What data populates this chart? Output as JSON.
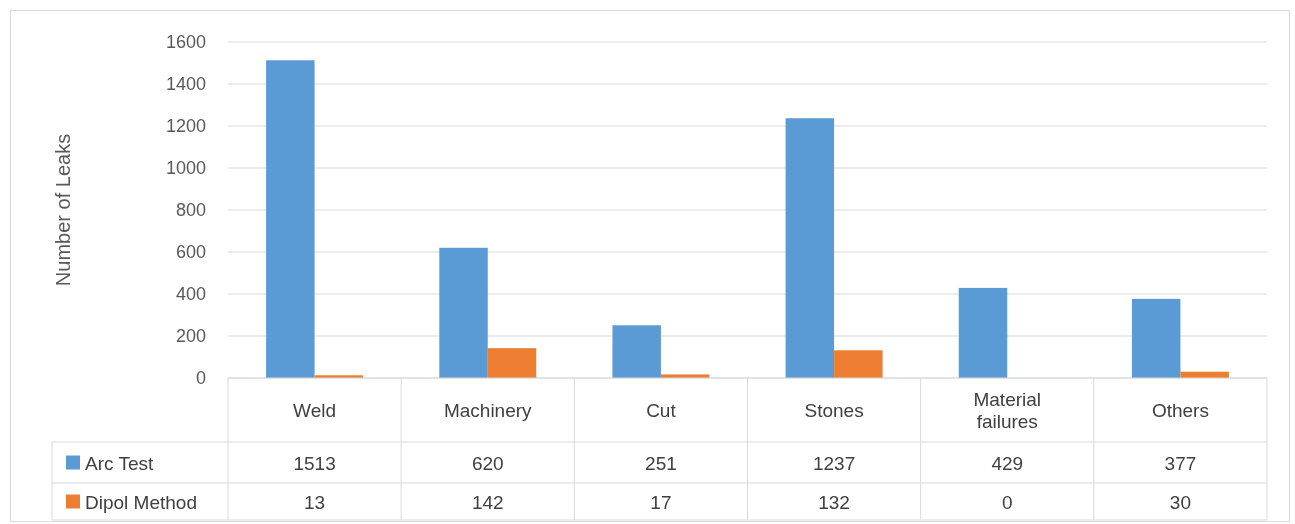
{
  "chart_data": {
    "type": "bar",
    "ylabel": "Number of Leaks",
    "categories": [
      "Weld",
      "Machinery",
      "Cut",
      "Stones",
      "Material failures",
      "Others"
    ],
    "series": [
      {
        "name": "Arc Test",
        "color": "#5b9bd5",
        "values": [
          1513,
          620,
          251,
          1237,
          429,
          377
        ]
      },
      {
        "name": "Dipol Method",
        "color": "#ed7d31",
        "values": [
          13,
          142,
          17,
          132,
          0,
          30
        ]
      }
    ],
    "ylim": [
      0,
      1600
    ],
    "yticks": [
      0,
      200,
      400,
      600,
      800,
      1000,
      1200,
      1400,
      1600
    ],
    "grid": "y",
    "data_labels": true,
    "legend": "bottom"
  }
}
